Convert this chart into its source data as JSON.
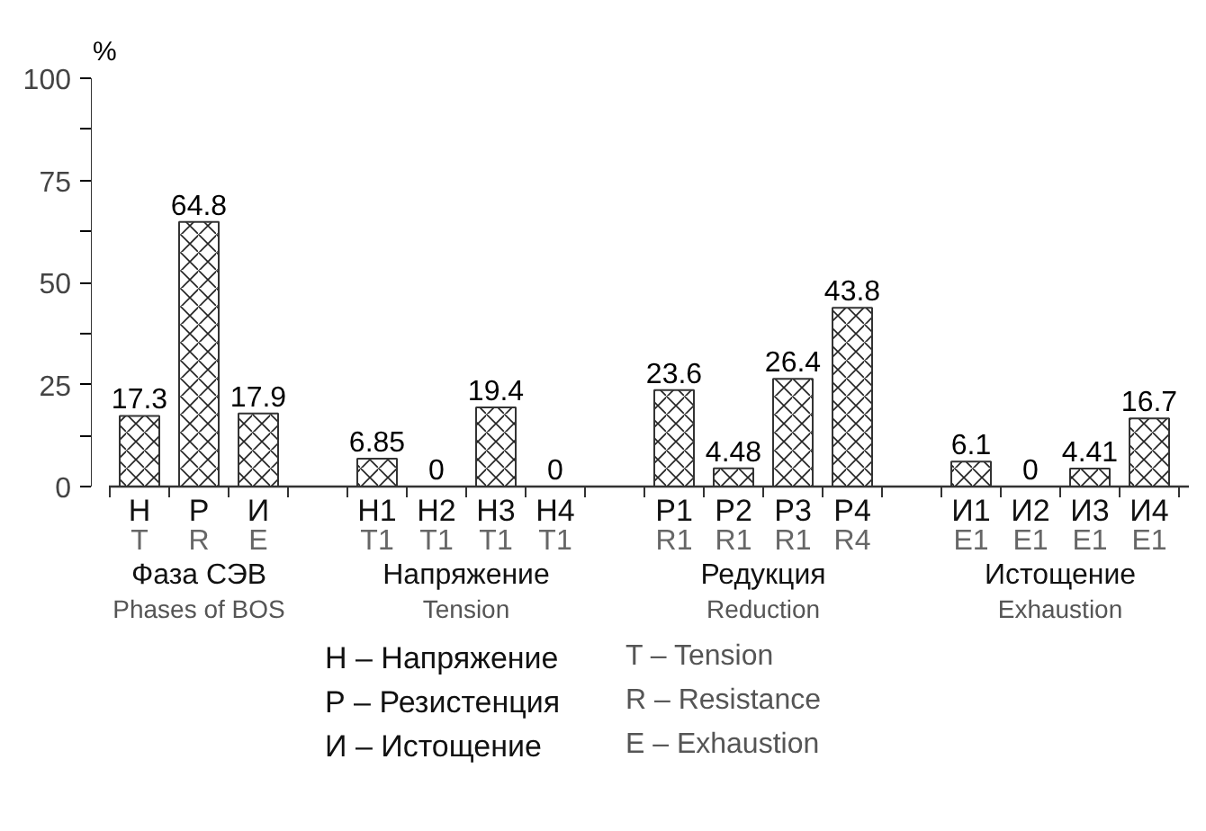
{
  "chart_data": {
    "type": "bar",
    "ylabel": "%",
    "categories": [
      "Н\nT",
      "Р\nR",
      "И\nE",
      null,
      "Н1\nT1",
      "Н2\nT1",
      "Н3\nT1",
      "Н4\nT1",
      null,
      "Р1\nR1",
      "Р2\nR1",
      "Р3\nR1",
      "Р4\nR4",
      null,
      "И1\nE1",
      "И2\nE1",
      "И3\nE1",
      "И4\nE1"
    ],
    "values": [
      17.3,
      64.8,
      17.9,
      null,
      6.85,
      0,
      19.4,
      0,
      null,
      23.6,
      4.48,
      26.4,
      43.8,
      null,
      6.1,
      0,
      4.41,
      16.7
    ],
    "data_labels": true,
    "color": "#ffffff",
    "ylim": [
      0,
      100
    ],
    "yticks": [
      0,
      {
        "value": 12.5,
        "label": null
      },
      25,
      {
        "value": 37.5,
        "label": null
      },
      50,
      {
        "value": 62.5,
        "label": null
      },
      75,
      {
        "value": 87.5,
        "label": null
      },
      100
    ],
    "annotations": [
      "Фаза СЭВ\nPhases of BOS",
      "Напряжение\nTension",
      "Редукция\nReduction",
      "Истощение\nExhaustion",
      "Н – Напряжение",
      "T – Tension",
      "Р – Резистенция",
      "R – Resistance",
      "И – Истощение",
      "E – Exhaustion"
    ]
  }
}
